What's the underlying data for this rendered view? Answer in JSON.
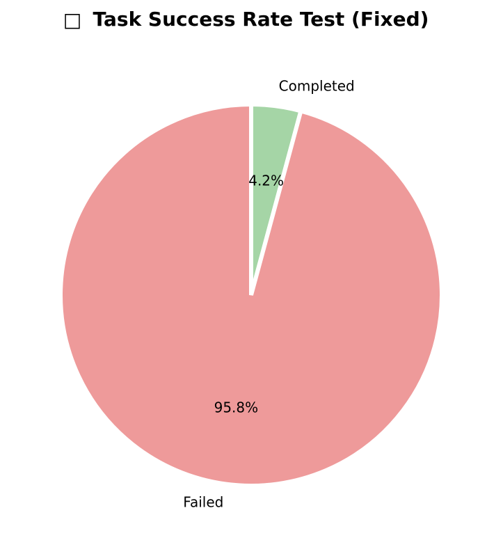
{
  "chart_data": {
    "type": "pie",
    "title": "Task Success Rate Test (Fixed)",
    "title_icon": "unrenderable-glyph-box",
    "categories": [
      "Completed",
      "Failed"
    ],
    "values": [
      4.2,
      95.8
    ],
    "value_labels": [
      "4.2%",
      "95.8%"
    ],
    "colors": [
      "#a5d5a6",
      "#ee9a9a"
    ],
    "edge_color": "#ffffff",
    "start_angle": "12 o'clock, clockwise",
    "legend": "none",
    "grid": false
  }
}
